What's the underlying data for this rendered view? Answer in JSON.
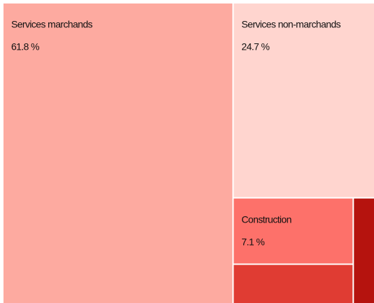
{
  "chart_data": {
    "type": "treemap",
    "categories": [
      "Services marchands",
      "Services non-marchands",
      "Construction",
      null,
      null
    ],
    "values": [
      61.8,
      24.7,
      7.1,
      4.3,
      2.1
    ],
    "value_labels": [
      "61.8 %",
      "24.7 %",
      "7.1 %",
      null,
      null
    ],
    "colors": [
      "#fdaaa0",
      "#ffd5cf",
      "#fd716a",
      "#e03c33",
      "#b5130e"
    ]
  }
}
